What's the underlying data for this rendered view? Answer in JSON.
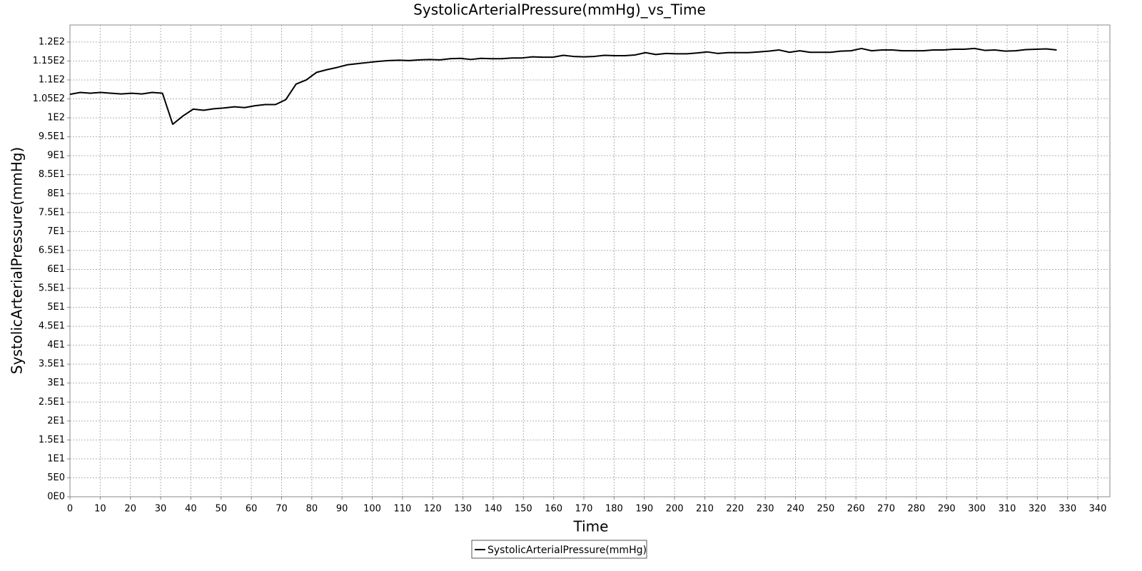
{
  "chart_data": {
    "type": "line",
    "title": "SystolicArterialPressure(mmHg)_vs_Time",
    "x_label": "Time",
    "y_label": "SystolicArterialPressure(mmHg)",
    "grid": true,
    "legend": "bottom",
    "xlim": [
      0,
      344
    ],
    "ylim": [
      0,
      124.5
    ],
    "xticks": [
      0,
      10,
      20,
      30,
      40,
      50,
      60,
      70,
      80,
      90,
      100,
      110,
      120,
      130,
      140,
      150,
      160,
      170,
      180,
      190,
      200,
      210,
      220,
      230,
      240,
      250,
      260,
      270,
      280,
      290,
      300,
      310,
      320,
      330,
      340
    ],
    "yticks": [
      {
        "value": 0,
        "label": "0E0"
      },
      {
        "value": 5,
        "label": "5E0"
      },
      {
        "value": 10,
        "label": "1E1"
      },
      {
        "value": 15,
        "label": "1.5E1"
      },
      {
        "value": 20,
        "label": "2E1"
      },
      {
        "value": 25,
        "label": "2.5E1"
      },
      {
        "value": 30,
        "label": "3E1"
      },
      {
        "value": 35,
        "label": "3.5E1"
      },
      {
        "value": 40,
        "label": "4E1"
      },
      {
        "value": 45,
        "label": "4.5E1"
      },
      {
        "value": 50,
        "label": "5E1"
      },
      {
        "value": 55,
        "label": "5.5E1"
      },
      {
        "value": 60,
        "label": "6E1"
      },
      {
        "value": 65,
        "label": "6.5E1"
      },
      {
        "value": 70,
        "label": "7E1"
      },
      {
        "value": 75,
        "label": "7.5E1"
      },
      {
        "value": 80,
        "label": "8E1"
      },
      {
        "value": 85,
        "label": "8.5E1"
      },
      {
        "value": 90,
        "label": "9E1"
      },
      {
        "value": 95,
        "label": "9.5E1"
      },
      {
        "value": 100,
        "label": "1E2"
      },
      {
        "value": 105,
        "label": "1.05E2"
      },
      {
        "value": 110,
        "label": "1.1E2"
      },
      {
        "value": 115,
        "label": "1.15E2"
      },
      {
        "value": 120,
        "label": "1.2E2"
      }
    ],
    "x": [
      0,
      3.4,
      6.8,
      10.2,
      13.6,
      17,
      20.4,
      23.8,
      27.2,
      30.6,
      34,
      37.4,
      40.8,
      44.2,
      47.6,
      51,
      54.4,
      57.8,
      61.2,
      64.6,
      68,
      71.4,
      74.8,
      78.2,
      81.6,
      85,
      88.4,
      91.8,
      95.2,
      98.6,
      102,
      105.4,
      108.8,
      112.2,
      115.6,
      119,
      122.4,
      125.8,
      129.2,
      132.6,
      136,
      139.4,
      142.8,
      146.2,
      149.6,
      153,
      156.4,
      159.8,
      163.2,
      166.6,
      170,
      173.4,
      176.8,
      180.2,
      183.6,
      187,
      190.4,
      193.8,
      197.2,
      200.6,
      204,
      207.4,
      210.8,
      214.2,
      217.6,
      221,
      224.4,
      227.8,
      231.2,
      234.6,
      238,
      241.4,
      244.8,
      248.2,
      251.6,
      255,
      258.4,
      261.8,
      265.2,
      268.6,
      272,
      275.4,
      278.8,
      282.2,
      285.6,
      289,
      292.4,
      295.8,
      299.2,
      302.6,
      306,
      309.4,
      312.8,
      316.2,
      319.6,
      323,
      326.4
    ],
    "series": [
      {
        "name": "SystolicArterialPressure(mmHg)",
        "color": "#000000",
        "values": [
          106.2,
          106.7,
          106.5,
          106.7,
          106.5,
          106.3,
          106.5,
          106.3,
          106.7,
          106.5,
          98.3,
          100.5,
          102.3,
          102.0,
          102.4,
          102.6,
          102.9,
          102.7,
          103.2,
          103.5,
          103.5,
          104.8,
          108.9,
          110.0,
          112.0,
          112.7,
          113.3,
          114.0,
          114.3,
          114.6,
          114.9,
          115.1,
          115.2,
          115.1,
          115.3,
          115.4,
          115.3,
          115.6,
          115.7,
          115.4,
          115.7,
          115.6,
          115.6,
          115.8,
          115.8,
          116.1,
          116.0,
          116.0,
          116.5,
          116.2,
          116.1,
          116.2,
          116.5,
          116.4,
          116.4,
          116.6,
          117.2,
          116.7,
          117.0,
          116.9,
          116.9,
          117.1,
          117.4,
          117.0,
          117.2,
          117.2,
          117.2,
          117.4,
          117.6,
          117.9,
          117.3,
          117.7,
          117.3,
          117.3,
          117.3,
          117.6,
          117.7,
          118.3,
          117.7,
          117.9,
          117.9,
          117.7,
          117.7,
          117.7,
          117.9,
          117.9,
          118.1,
          118.1,
          118.3,
          117.8,
          117.9,
          117.6,
          117.7,
          118.0,
          118.1,
          118.2,
          117.9
        ]
      }
    ]
  }
}
